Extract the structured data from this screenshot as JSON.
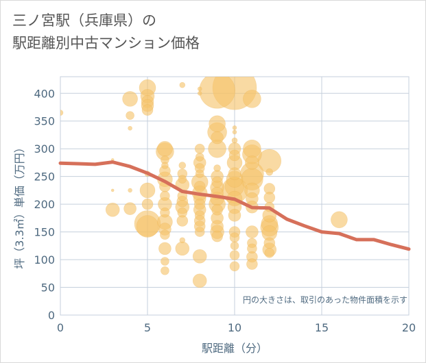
{
  "title": {
    "line1": "三ノ宮駅（兵庫県）の",
    "line2": "駅距離別中古マンション価格"
  },
  "colors": {
    "bubble": "#f5c46a",
    "bubble_stroke": "#e8ae4e",
    "trend": "#d6705a",
    "grid": "#c5cfdc",
    "axis_text": "#4f6a80"
  },
  "chart_data": {
    "type": "scatter",
    "title": "三ノ宮駅（兵庫県）の駅距離別中古マンション価格",
    "xlabel": "駅距離（分）",
    "ylabel": "坪（3.3㎡）単価（万円）",
    "xlim": [
      0,
      20
    ],
    "ylim": [
      0,
      430
    ],
    "xticks": [
      0,
      5,
      10,
      15,
      20
    ],
    "yticks": [
      0,
      50,
      100,
      150,
      200,
      250,
      300,
      350,
      400
    ],
    "grid": true,
    "annotation": "円の大きさは、取引のあった物件面積を示す",
    "points": [
      {
        "x": 0,
        "y": 365,
        "s": 4
      },
      {
        "x": 3,
        "y": 280,
        "s": 2
      },
      {
        "x": 3,
        "y": 225,
        "s": 2
      },
      {
        "x": 3,
        "y": 190,
        "s": 10
      },
      {
        "x": 4,
        "y": 390,
        "s": 11
      },
      {
        "x": 4,
        "y": 360,
        "s": 6
      },
      {
        "x": 4,
        "y": 337,
        "s": 3
      },
      {
        "x": 4,
        "y": 225,
        "s": 3
      },
      {
        "x": 4,
        "y": 192,
        "s": 9
      },
      {
        "x": 5,
        "y": 410,
        "s": 12
      },
      {
        "x": 5,
        "y": 395,
        "s": 10
      },
      {
        "x": 5,
        "y": 385,
        "s": 9
      },
      {
        "x": 5,
        "y": 378,
        "s": 9
      },
      {
        "x": 5,
        "y": 370,
        "s": 8
      },
      {
        "x": 5,
        "y": 255,
        "s": 4
      },
      {
        "x": 5,
        "y": 225,
        "s": 11
      },
      {
        "x": 5,
        "y": 200,
        "s": 8
      },
      {
        "x": 5,
        "y": 165,
        "s": 19
      },
      {
        "x": 5,
        "y": 160,
        "s": 16
      },
      {
        "x": 6,
        "y": 300,
        "s": 11
      },
      {
        "x": 6,
        "y": 295,
        "s": 13
      },
      {
        "x": 6,
        "y": 280,
        "s": 6
      },
      {
        "x": 6,
        "y": 270,
        "s": 5
      },
      {
        "x": 6,
        "y": 260,
        "s": 8
      },
      {
        "x": 6,
        "y": 245,
        "s": 11
      },
      {
        "x": 6,
        "y": 232,
        "s": 8
      },
      {
        "x": 6,
        "y": 215,
        "s": 7
      },
      {
        "x": 6,
        "y": 200,
        "s": 10
      },
      {
        "x": 6,
        "y": 185,
        "s": 7
      },
      {
        "x": 6,
        "y": 168,
        "s": 11
      },
      {
        "x": 6,
        "y": 155,
        "s": 9
      },
      {
        "x": 6,
        "y": 145,
        "s": 7
      },
      {
        "x": 6,
        "y": 120,
        "s": 9
      },
      {
        "x": 6,
        "y": 97,
        "s": 6
      },
      {
        "x": 6,
        "y": 80,
        "s": 6
      },
      {
        "x": 7,
        "y": 415,
        "s": 4
      },
      {
        "x": 7,
        "y": 270,
        "s": 5
      },
      {
        "x": 7,
        "y": 255,
        "s": 7
      },
      {
        "x": 7,
        "y": 245,
        "s": 6
      },
      {
        "x": 7,
        "y": 235,
        "s": 10
      },
      {
        "x": 7,
        "y": 215,
        "s": 7
      },
      {
        "x": 7,
        "y": 205,
        "s": 8
      },
      {
        "x": 7,
        "y": 195,
        "s": 10
      },
      {
        "x": 7,
        "y": 185,
        "s": 7
      },
      {
        "x": 7,
        "y": 170,
        "s": 8
      },
      {
        "x": 7,
        "y": 135,
        "s": 4
      },
      {
        "x": 7,
        "y": 120,
        "s": 10
      },
      {
        "x": 8,
        "y": 408,
        "s": 3
      },
      {
        "x": 8,
        "y": 400,
        "s": 3
      },
      {
        "x": 8,
        "y": 300,
        "s": 7
      },
      {
        "x": 8,
        "y": 285,
        "s": 6
      },
      {
        "x": 8,
        "y": 275,
        "s": 9
      },
      {
        "x": 8,
        "y": 265,
        "s": 7
      },
      {
        "x": 8,
        "y": 255,
        "s": 6
      },
      {
        "x": 8,
        "y": 240,
        "s": 12
      },
      {
        "x": 8,
        "y": 232,
        "s": 8
      },
      {
        "x": 8,
        "y": 220,
        "s": 11
      },
      {
        "x": 8,
        "y": 210,
        "s": 9
      },
      {
        "x": 8,
        "y": 200,
        "s": 8
      },
      {
        "x": 8,
        "y": 190,
        "s": 9
      },
      {
        "x": 8,
        "y": 180,
        "s": 7
      },
      {
        "x": 8,
        "y": 170,
        "s": 8
      },
      {
        "x": 8,
        "y": 160,
        "s": 8
      },
      {
        "x": 8,
        "y": 150,
        "s": 7
      },
      {
        "x": 8,
        "y": 106,
        "s": 10
      },
      {
        "x": 8,
        "y": 62,
        "s": 10
      },
      {
        "x": 9,
        "y": 405,
        "s": 26
      },
      {
        "x": 9,
        "y": 345,
        "s": 12
      },
      {
        "x": 9,
        "y": 330,
        "s": 14
      },
      {
        "x": 9,
        "y": 320,
        "s": 9
      },
      {
        "x": 9,
        "y": 300,
        "s": 13
      },
      {
        "x": 9,
        "y": 265,
        "s": 5
      },
      {
        "x": 9,
        "y": 250,
        "s": 9
      },
      {
        "x": 9,
        "y": 240,
        "s": 8
      },
      {
        "x": 9,
        "y": 230,
        "s": 10
      },
      {
        "x": 9,
        "y": 220,
        "s": 9
      },
      {
        "x": 9,
        "y": 210,
        "s": 10
      },
      {
        "x": 9,
        "y": 200,
        "s": 12
      },
      {
        "x": 9,
        "y": 190,
        "s": 8
      },
      {
        "x": 9,
        "y": 175,
        "s": 9
      },
      {
        "x": 9,
        "y": 160,
        "s": 9
      },
      {
        "x": 9,
        "y": 150,
        "s": 10
      },
      {
        "x": 9,
        "y": 142,
        "s": 8
      },
      {
        "x": 10,
        "y": 410,
        "s": 32
      },
      {
        "x": 10,
        "y": 338,
        "s": 3
      },
      {
        "x": 10,
        "y": 330,
        "s": 3
      },
      {
        "x": 10,
        "y": 315,
        "s": 4
      },
      {
        "x": 10,
        "y": 300,
        "s": 9
      },
      {
        "x": 10,
        "y": 288,
        "s": 8
      },
      {
        "x": 10,
        "y": 275,
        "s": 11
      },
      {
        "x": 10,
        "y": 255,
        "s": 9
      },
      {
        "x": 10,
        "y": 245,
        "s": 12
      },
      {
        "x": 10,
        "y": 232,
        "s": 14
      },
      {
        "x": 10,
        "y": 225,
        "s": 19
      },
      {
        "x": 10,
        "y": 210,
        "s": 11
      },
      {
        "x": 10,
        "y": 195,
        "s": 10
      },
      {
        "x": 10,
        "y": 180,
        "s": 9
      },
      {
        "x": 10,
        "y": 150,
        "s": 8
      },
      {
        "x": 10,
        "y": 140,
        "s": 7
      },
      {
        "x": 10,
        "y": 125,
        "s": 6
      },
      {
        "x": 10,
        "y": 108,
        "s": 7
      },
      {
        "x": 10,
        "y": 88,
        "s": 7
      },
      {
        "x": 11,
        "y": 390,
        "s": 13
      },
      {
        "x": 11,
        "y": 300,
        "s": 13
      },
      {
        "x": 11,
        "y": 290,
        "s": 14
      },
      {
        "x": 11,
        "y": 275,
        "s": 10
      },
      {
        "x": 11,
        "y": 255,
        "s": 17
      },
      {
        "x": 11,
        "y": 245,
        "s": 16
      },
      {
        "x": 11,
        "y": 225,
        "s": 11
      },
      {
        "x": 11,
        "y": 210,
        "s": 9
      },
      {
        "x": 11,
        "y": 195,
        "s": 9
      },
      {
        "x": 11,
        "y": 150,
        "s": 9
      },
      {
        "x": 11,
        "y": 130,
        "s": 7
      },
      {
        "x": 11,
        "y": 120,
        "s": 7
      },
      {
        "x": 11,
        "y": 105,
        "s": 8
      },
      {
        "x": 11,
        "y": 92,
        "s": 8
      },
      {
        "x": 12,
        "y": 278,
        "s": 17
      },
      {
        "x": 12,
        "y": 258,
        "s": 5
      },
      {
        "x": 12,
        "y": 228,
        "s": 8
      },
      {
        "x": 12,
        "y": 212,
        "s": 8
      },
      {
        "x": 12,
        "y": 195,
        "s": 7
      },
      {
        "x": 12,
        "y": 180,
        "s": 10
      },
      {
        "x": 12,
        "y": 165,
        "s": 12
      },
      {
        "x": 12,
        "y": 158,
        "s": 13
      },
      {
        "x": 12,
        "y": 148,
        "s": 11
      },
      {
        "x": 12,
        "y": 130,
        "s": 8
      },
      {
        "x": 12,
        "y": 118,
        "s": 10
      },
      {
        "x": 12,
        "y": 112,
        "s": 7
      },
      {
        "x": 16,
        "y": 172,
        "s": 12
      }
    ],
    "series": [
      {
        "type": "line",
        "x": [
          0,
          1,
          2,
          3,
          4,
          5,
          6,
          7,
          8,
          9,
          10,
          11,
          12,
          13,
          14,
          15,
          16,
          17,
          18,
          19,
          20
        ],
        "y": [
          274,
          273,
          272,
          276,
          268,
          256,
          241,
          223,
          218,
          214,
          209,
          194,
          193,
          173,
          161,
          150,
          147,
          136,
          136,
          127,
          119
        ]
      }
    ]
  }
}
